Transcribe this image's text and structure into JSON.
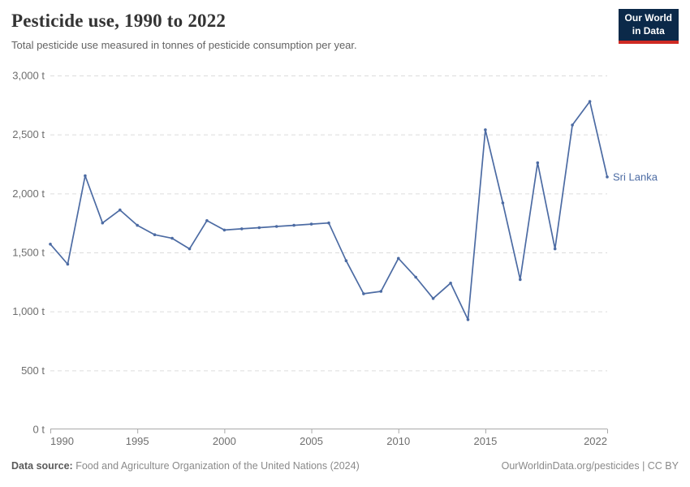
{
  "header": {
    "title": "Pesticide use, 1990 to 2022",
    "subtitle": "Total pesticide use measured in tonnes of pesticide consumption per year."
  },
  "logo": {
    "line1": "Our World",
    "line2": "in Data",
    "bg_color": "#0B2949",
    "stripe_color": "#CE2A23"
  },
  "chart_data": {
    "type": "line",
    "title": "Pesticide use, 1990 to 2022",
    "unit": "t",
    "x": [
      1990,
      1991,
      1992,
      1993,
      1994,
      1995,
      1996,
      1997,
      1998,
      1999,
      2000,
      2001,
      2002,
      2003,
      2004,
      2005,
      2006,
      2007,
      2008,
      2009,
      2010,
      2011,
      2012,
      2013,
      2014,
      2015,
      2016,
      2017,
      2018,
      2019,
      2020,
      2021,
      2022
    ],
    "series": [
      {
        "name": "Sri Lanka",
        "color": "#4C6BA3",
        "values": [
          1570,
          1400,
          2150,
          1750,
          1860,
          1730,
          1650,
          1620,
          1530,
          1770,
          1690,
          1700,
          1710,
          1720,
          1730,
          1740,
          1750,
          1430,
          1150,
          1170,
          1450,
          1290,
          1110,
          1240,
          930,
          2540,
          1920,
          1270,
          2260,
          1530,
          2580,
          2780,
          2140
        ]
      }
    ],
    "xlim": [
      1990,
      2022
    ],
    "ylim": [
      0,
      3000
    ],
    "x_ticks": [
      1990,
      1995,
      2000,
      2005,
      2010,
      2015,
      2022
    ],
    "y_ticks": [
      0,
      500,
      1000,
      1500,
      2000,
      2500,
      3000
    ],
    "y_tick_suffix": " t",
    "grid": "horizontal-dashed",
    "legend": "end-of-line entity label",
    "marker": "dot"
  },
  "footer": {
    "source_label": "Data source:",
    "source_text": "Food and Agriculture Organization of the United Nations (2024)",
    "link_text": "OurWorldinData.org/pesticides | CC BY"
  }
}
